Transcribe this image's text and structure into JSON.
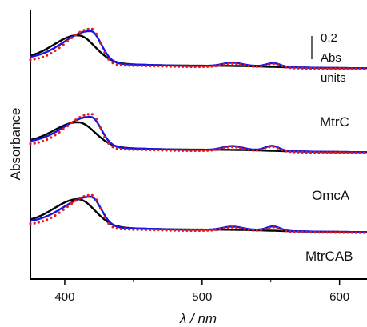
{
  "chart_data": {
    "type": "line",
    "title": "",
    "xlabel": "λ / nm",
    "ylabel": "Absorbance",
    "xlim": [
      375,
      620
    ],
    "x_ticks": [
      400,
      500,
      600
    ],
    "x_tick_labels": [
      "400",
      "500",
      "600"
    ],
    "scale_bar": {
      "label_lines": [
        "0.2",
        "Abs",
        "units"
      ],
      "value": 0.2,
      "unit": "Abs units"
    },
    "colors": {
      "black": "#000000",
      "blue": "#1414e6",
      "red": "#e01b1b"
    },
    "spectra": [
      {
        "name": "MtrC",
        "baseline_abs": 0.55,
        "black_peak_nm": 410,
        "black_peak_abs": 1.0,
        "blue_peak_nm": 419,
        "blue_peak_abs": 1.08,
        "red_peak_abs": 1.14,
        "q_band_nm": [
          522,
          552
        ],
        "q_band_abs": [
          0.05,
          0.06
        ]
      },
      {
        "name": "OmcA",
        "baseline_abs": 0.55,
        "black_peak_nm": 410,
        "black_peak_abs": 0.95,
        "blue_peak_nm": 419,
        "blue_peak_abs": 1.05,
        "red_peak_abs": 1.12,
        "q_band_nm": [
          522,
          551
        ],
        "q_band_abs": [
          0.06,
          0.08
        ]
      },
      {
        "name": "MtrCAB",
        "baseline_abs": 0.55,
        "black_peak_nm": 410,
        "black_peak_abs": 1.0,
        "blue_peak_nm": 419,
        "blue_peak_abs": 1.05,
        "red_peak_abs": 1.1,
        "q_band_nm": [
          522,
          552
        ],
        "q_band_abs": [
          0.05,
          0.07
        ]
      }
    ]
  }
}
